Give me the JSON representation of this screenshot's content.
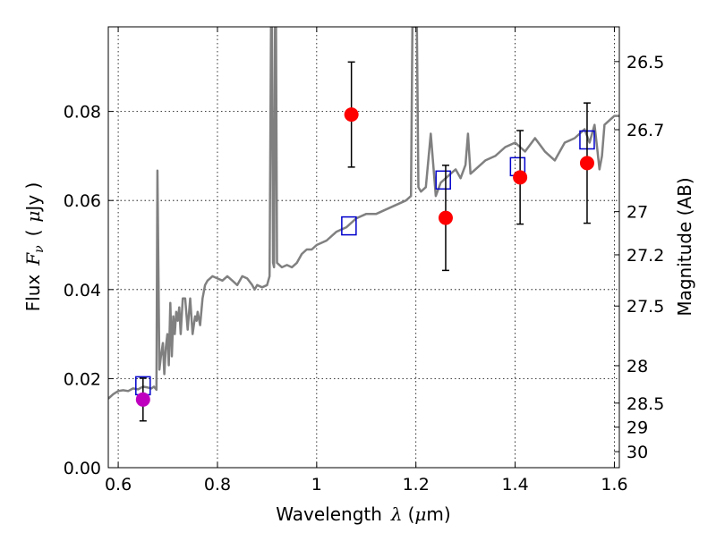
{
  "chart_data": {
    "type": "scatter",
    "xlabel": "Wavelength",
    "xlabel_symbol": "λ",
    "xlabel_unit_open": "(",
    "xlabel_unit_mu": "μ",
    "xlabel_unit_rest": "m)",
    "ylabel": "Flux",
    "ylabel_symbol_main": "F",
    "ylabel_symbol_sub": "ν",
    "ylabel_unit_open": "(",
    "ylabel_unit_mu": "μ",
    "ylabel_unit_rest": "Jy )",
    "y2label": "Magnitude (AB)",
    "xlim": [
      0.58,
      1.61
    ],
    "ylim": [
      0.0,
      0.099
    ],
    "grid": true,
    "x_ticks": [
      {
        "value": 0.6,
        "label": "0.6"
      },
      {
        "value": 0.8,
        "label": "0.8"
      },
      {
        "value": 1.0,
        "label": "1"
      },
      {
        "value": 1.2,
        "label": "1.2"
      },
      {
        "value": 1.4,
        "label": "1.4"
      },
      {
        "value": 1.6,
        "label": "1.6"
      }
    ],
    "y_ticks": [
      {
        "value": 0.0,
        "label": "0.00"
      },
      {
        "value": 0.02,
        "label": "0.02"
      },
      {
        "value": 0.04,
        "label": "0.04"
      },
      {
        "value": 0.06,
        "label": "0.06"
      },
      {
        "value": 0.08,
        "label": "0.08"
      }
    ],
    "y2_ticks": [
      {
        "flux": 0.0912,
        "label": "26.5"
      },
      {
        "flux": 0.0759,
        "label": "26.7"
      },
      {
        "flux": 0.0575,
        "label": "27"
      },
      {
        "flux": 0.0478,
        "label": "27.2"
      },
      {
        "flux": 0.0363,
        "label": "27.5"
      },
      {
        "flux": 0.0229,
        "label": "28"
      },
      {
        "flux": 0.0145,
        "label": "28.5"
      },
      {
        "flux": 0.0091,
        "label": "29"
      },
      {
        "flux": 0.0036,
        "label": "30"
      }
    ],
    "series": [
      {
        "kind": "line",
        "color": "#808080",
        "x": [
          0.58,
          0.59,
          0.6,
          0.61,
          0.62,
          0.63,
          0.64,
          0.65,
          0.66,
          0.667,
          0.672,
          0.677,
          0.679,
          0.683,
          0.686,
          0.69,
          0.693,
          0.696,
          0.699,
          0.702,
          0.705,
          0.708,
          0.711,
          0.714,
          0.717,
          0.72,
          0.723,
          0.726,
          0.73,
          0.735,
          0.74,
          0.745,
          0.75,
          0.755,
          0.758,
          0.76,
          0.765,
          0.77,
          0.775,
          0.78,
          0.79,
          0.8,
          0.81,
          0.82,
          0.83,
          0.84,
          0.85,
          0.86,
          0.87,
          0.875,
          0.88,
          0.89,
          0.9,
          0.905,
          0.908,
          0.91,
          0.912,
          0.914,
          0.916,
          0.918,
          0.92,
          0.93,
          0.94,
          0.95,
          0.96,
          0.97,
          0.98,
          0.99,
          1.0,
          1.02,
          1.04,
          1.06,
          1.08,
          1.1,
          1.12,
          1.14,
          1.16,
          1.18,
          1.19,
          1.193,
          1.196,
          1.199,
          1.202,
          1.205,
          1.21,
          1.22,
          1.23,
          1.24,
          1.25,
          1.26,
          1.27,
          1.28,
          1.29,
          1.3,
          1.305,
          1.31,
          1.32,
          1.34,
          1.36,
          1.38,
          1.4,
          1.42,
          1.44,
          1.46,
          1.48,
          1.5,
          1.52,
          1.54,
          1.55,
          1.56,
          1.565,
          1.57,
          1.575,
          1.58,
          1.59,
          1.6,
          1.61
        ],
        "y": [
          0.0155,
          0.0165,
          0.0172,
          0.0174,
          0.0172,
          0.0178,
          0.0176,
          0.0182,
          0.018,
          0.0178,
          0.0182,
          0.0175,
          0.0667,
          0.022,
          0.025,
          0.028,
          0.021,
          0.027,
          0.03,
          0.023,
          0.037,
          0.025,
          0.034,
          0.03,
          0.035,
          0.033,
          0.036,
          0.03,
          0.038,
          0.038,
          0.031,
          0.038,
          0.03,
          0.034,
          0.033,
          0.035,
          0.032,
          0.038,
          0.041,
          0.042,
          0.043,
          0.0425,
          0.042,
          0.043,
          0.042,
          0.041,
          0.043,
          0.0425,
          0.041,
          0.04,
          0.041,
          0.0405,
          0.041,
          0.043,
          0.099,
          0.099,
          0.046,
          0.045,
          0.099,
          0.099,
          0.046,
          0.045,
          0.0455,
          0.045,
          0.046,
          0.048,
          0.049,
          0.049,
          0.05,
          0.051,
          0.053,
          0.054,
          0.056,
          0.057,
          0.057,
          0.058,
          0.059,
          0.06,
          0.061,
          0.099,
          0.099,
          0.099,
          0.099,
          0.063,
          0.062,
          0.063,
          0.075,
          0.061,
          0.064,
          0.065,
          0.066,
          0.067,
          0.065,
          0.068,
          0.075,
          0.066,
          0.067,
          0.069,
          0.07,
          0.072,
          0.073,
          0.071,
          0.074,
          0.071,
          0.069,
          0.073,
          0.074,
          0.076,
          0.073,
          0.077,
          0.072,
          0.067,
          0.07,
          0.077,
          0.078,
          0.079,
          0.079
        ]
      },
      {
        "kind": "scatter",
        "marker": "open-square",
        "color": "#0000cc",
        "x": [
          0.65,
          1.065,
          1.255,
          1.405,
          1.545
        ],
        "y": [
          0.0184,
          0.0543,
          0.0646,
          0.0676,
          0.0736
        ]
      },
      {
        "kind": "scatter",
        "marker": "filled-circle",
        "color": "#ff0000",
        "x": [
          1.07,
          1.26,
          1.41,
          1.545
        ],
        "y": [
          0.0793,
          0.0561,
          0.0652,
          0.0684
        ],
        "yerr": [
          0.0118,
          0.0118,
          0.0105,
          0.0135
        ]
      },
      {
        "kind": "scatter",
        "marker": "filled-circle",
        "color": "#bf00bf",
        "x": [
          0.65
        ],
        "y": [
          0.0153
        ],
        "yerr": [
          0.0048
        ]
      }
    ]
  }
}
